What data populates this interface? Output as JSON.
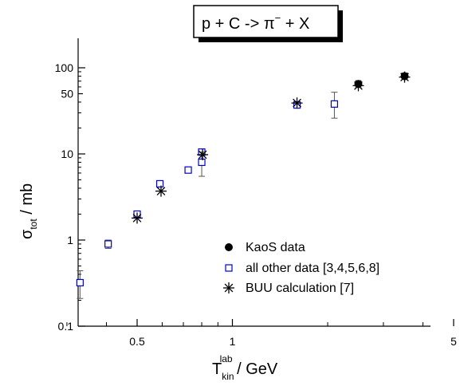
{
  "chart_data": {
    "type": "scatter",
    "title": {
      "prefix": "p + C -> ",
      "pi": "π",
      "pi_sup": "−",
      "suffix": " + X"
    },
    "xlabel": {
      "main": "T",
      "sub": "kin",
      "sup": "lab",
      "unit": " / GeV"
    },
    "ylabel": {
      "main": "σ",
      "sub": "tot",
      "unit": " / mb"
    },
    "x_scale": "log",
    "y_scale": "log",
    "xlim": [
      0.3,
      5
    ],
    "ylim": [
      0.1,
      200
    ],
    "x_ticks": [
      {
        "value": 0.5,
        "label": "0.5"
      },
      {
        "value": 1,
        "label": "1"
      },
      {
        "value": 5,
        "label": "5"
      }
    ],
    "y_ticks": [
      {
        "value": 0.1,
        "label": "0.1"
      },
      {
        "value": 1,
        "label": "1"
      },
      {
        "value": 10,
        "label": "10"
      },
      {
        "value": 50,
        "label": "50"
      },
      {
        "value": 100,
        "label": "100"
      }
    ],
    "grid": false,
    "legend_position": "bottom-right",
    "series": [
      {
        "name": "KaoS data",
        "marker": "filled-circle",
        "color": "#000000",
        "points": [
          {
            "x": 2.5,
            "y": 65,
            "err": 6
          },
          {
            "x": 3.5,
            "y": 80,
            "err": 7
          }
        ]
      },
      {
        "name": "all other data  [3,4,5,6,8]",
        "marker": "open-square",
        "color": "#0000cc",
        "points": [
          {
            "x": 0.33,
            "y": 0.32,
            "err_low": 0.11,
            "err_high": 0.12
          },
          {
            "x": 0.405,
            "y": 0.9,
            "err": 0.1
          },
          {
            "x": 0.5,
            "y": 2.0,
            "err": 0.15
          },
          {
            "x": 0.59,
            "y": 4.5,
            "err": 0.3
          },
          {
            "x": 0.725,
            "y": 6.5,
            "err": 0.3
          },
          {
            "x": 0.8,
            "y": 10.5,
            "err": 0.8
          },
          {
            "x": 0.8,
            "y": 8.0,
            "err_low": 2.5,
            "err_high": 2.5
          },
          {
            "x": 1.6,
            "y": 37,
            "err": 2
          },
          {
            "x": 2.1,
            "y": 38,
            "err_low": 12,
            "err_high": 14
          }
        ]
      },
      {
        "name": "BUU calculation [7]",
        "marker": "asterisk",
        "color": "#000000",
        "points": [
          {
            "x": 0.5,
            "y": 1.8
          },
          {
            "x": 0.595,
            "y": 3.7
          },
          {
            "x": 0.805,
            "y": 9.8
          },
          {
            "x": 1.6,
            "y": 39
          },
          {
            "x": 2.5,
            "y": 62
          },
          {
            "x": 3.5,
            "y": 78
          }
        ]
      }
    ]
  }
}
